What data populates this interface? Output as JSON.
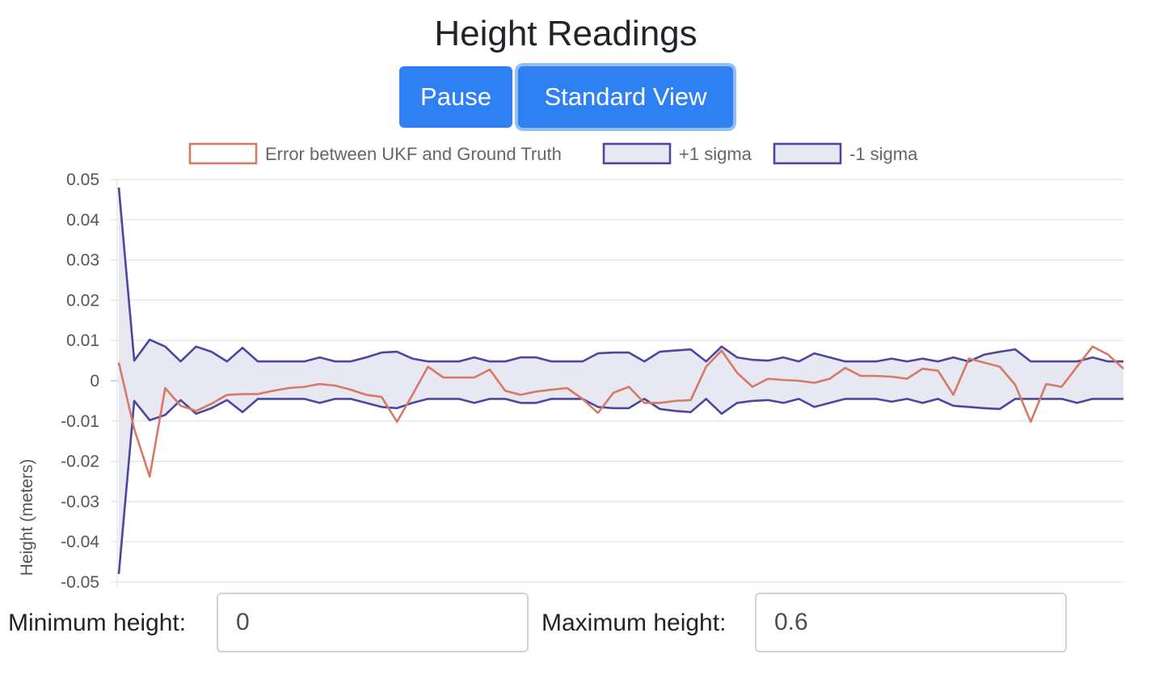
{
  "header": {
    "title": "Height Readings"
  },
  "controls": {
    "pause_label": "Pause",
    "view_label": "Standard View"
  },
  "form": {
    "min_label": "Minimum height:",
    "min_value": "0",
    "max_label": "Maximum height:",
    "max_value": "0.6"
  },
  "colors": {
    "error_line": "#d47a66",
    "sigma_line": "#4e45a0",
    "sigma_fill": "#e8e8f2",
    "button": "#2f80f2"
  },
  "chart_data": {
    "type": "line",
    "title": "",
    "xlabel": "",
    "ylabel": "Height (meters)",
    "ylim": [
      -0.05,
      0.05
    ],
    "yticks": [
      "0.05",
      "0.04",
      "0.03",
      "0.02",
      "0.01",
      "0",
      "-0.01",
      "-0.02",
      "-0.03",
      "-0.04",
      "-0.05"
    ],
    "grid": true,
    "legend_position": "top",
    "series": [
      {
        "name": "Error between UKF and Ground Truth",
        "style": "line",
        "values": [
          0.0045,
          -0.012,
          -0.0238,
          -0.0018,
          -0.0062,
          -0.0075,
          -0.0057,
          -0.0035,
          -0.0033,
          -0.0033,
          -0.0025,
          -0.0018,
          -0.0015,
          -0.0008,
          -0.0012,
          -0.0022,
          -0.0035,
          -0.004,
          -0.0102,
          -0.0035,
          0.0035,
          0.0008,
          0.0008,
          0.0008,
          0.0028,
          -0.0025,
          -0.0035,
          -0.0027,
          -0.0022,
          -0.0018,
          -0.0045,
          -0.008,
          -0.003,
          -0.0015,
          -0.0055,
          -0.0055,
          -0.005,
          -0.0048,
          0.0035,
          0.0075,
          0.002,
          -0.0015,
          0.0005,
          0.0002,
          0.0,
          -0.0005,
          0.0005,
          0.0032,
          0.0012,
          0.0012,
          0.001,
          0.0005,
          0.003,
          0.0025,
          -0.0035,
          0.0055,
          0.0045,
          0.0035,
          -0.001,
          -0.0102,
          -0.0008,
          -0.0015,
          0.0035,
          0.0085,
          0.0065,
          0.003
        ]
      },
      {
        "name": "+1 sigma",
        "style": "band",
        "values": [
          0.048,
          0.005,
          0.0102,
          0.0085,
          0.0048,
          0.0085,
          0.0072,
          0.0048,
          0.0082,
          0.0048,
          0.0048,
          0.0048,
          0.0048,
          0.0058,
          0.0048,
          0.0048,
          0.0058,
          0.007,
          0.0072,
          0.0055,
          0.0048,
          0.0048,
          0.0048,
          0.0058,
          0.0048,
          0.0048,
          0.0058,
          0.0058,
          0.0048,
          0.0048,
          0.0048,
          0.0068,
          0.007,
          0.007,
          0.0048,
          0.0072,
          0.0075,
          0.0078,
          0.0048,
          0.0085,
          0.0058,
          0.0052,
          0.005,
          0.0058,
          0.0048,
          0.0068,
          0.0058,
          0.0048,
          0.0048,
          0.0048,
          0.0055,
          0.0048,
          0.0055,
          0.0048,
          0.0058,
          0.0048,
          0.0065,
          0.0072,
          0.0078,
          0.0048,
          0.0048,
          0.0048,
          0.0048,
          0.0058,
          0.0048,
          0.0048
        ]
      },
      {
        "name": "-1 sigma",
        "style": "band",
        "values": [
          -0.048,
          -0.005,
          -0.0098,
          -0.0085,
          -0.0048,
          -0.0082,
          -0.0068,
          -0.0048,
          -0.0078,
          -0.0045,
          -0.0045,
          -0.0045,
          -0.0045,
          -0.0055,
          -0.0045,
          -0.0045,
          -0.0055,
          -0.0065,
          -0.0068,
          -0.0055,
          -0.0045,
          -0.0045,
          -0.0045,
          -0.0055,
          -0.0045,
          -0.0045,
          -0.0055,
          -0.0055,
          -0.0045,
          -0.0045,
          -0.0045,
          -0.0065,
          -0.0068,
          -0.0068,
          -0.0045,
          -0.007,
          -0.0075,
          -0.0078,
          -0.0045,
          -0.0082,
          -0.0055,
          -0.005,
          -0.0048,
          -0.0055,
          -0.0045,
          -0.0065,
          -0.0055,
          -0.0045,
          -0.0045,
          -0.0045,
          -0.0052,
          -0.0045,
          -0.0055,
          -0.0045,
          -0.0062,
          -0.0065,
          -0.0068,
          -0.007,
          -0.0045,
          -0.0045,
          -0.0045,
          -0.0045,
          -0.0055,
          -0.0045,
          -0.0045,
          -0.0045
        ]
      }
    ]
  }
}
